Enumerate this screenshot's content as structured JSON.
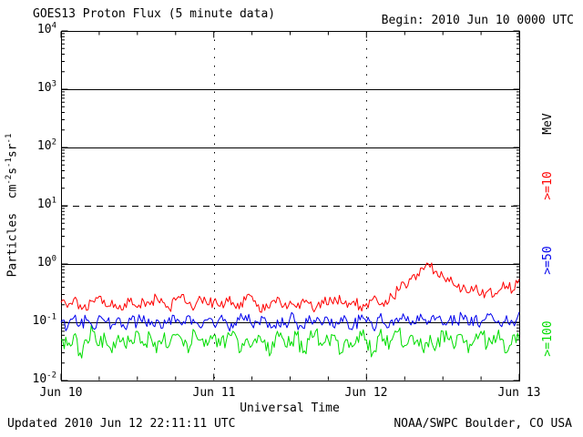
{
  "header": {
    "title": "GOES13 Proton Flux (5 minute data)",
    "begin_label": "Begin: 2010 Jun 10 0000 UTC"
  },
  "footer": {
    "updated": "Updated 2010 Jun 12 22:11:11 UTC",
    "source": "NOAA/SWPC Boulder, CO USA"
  },
  "chart_data": {
    "type": "line",
    "title": "GOES13 Proton Flux (5 minute data)",
    "xlabel": "Universal Time",
    "ylabel": "Particles cm^-2 s^-1 sr^-1",
    "ylabel_parts": {
      "t1": "Particles  cm",
      "s1": "-2",
      "t2": "s",
      "s2": "-1",
      "t3": "sr",
      "s3": "-1"
    },
    "unit_label": "MeV",
    "x_ticklabels": [
      "Jun 10",
      "Jun 11",
      "Jun 12",
      "Jun 13"
    ],
    "y_tick_exponents": [
      "4",
      "3",
      "2",
      "1",
      "0",
      "-1",
      "-2"
    ],
    "x_range_days": [
      0,
      3
    ],
    "y_range_log10": [
      -2,
      4
    ],
    "yscale": "log",
    "cadence_hours": 1,
    "grid": {
      "hlines": [
        {
          "value": 1000,
          "style": "solid"
        },
        {
          "value": 100,
          "style": "solid"
        },
        {
          "value": 10,
          "style": "dashed"
        },
        {
          "value": 1,
          "style": "solid"
        },
        {
          "value": 0.1,
          "style": "solid"
        }
      ],
      "vlines_days": [
        1,
        2
      ]
    },
    "series": [
      {
        "name": "Protons >=10 MeV",
        "label": ">=10",
        "color": "#ff0000",
        "jitter": 0.1,
        "values": [
          0.22,
          0.18,
          0.25,
          0.2,
          0.16,
          0.23,
          0.28,
          0.19,
          0.24,
          0.17,
          0.21,
          0.26,
          0.18,
          0.23,
          0.2,
          0.27,
          0.22,
          0.17,
          0.24,
          0.3,
          0.21,
          0.18,
          0.25,
          0.2,
          0.23,
          0.19,
          0.26,
          0.22,
          0.17,
          0.24,
          0.28,
          0.2,
          0.16,
          0.22,
          0.27,
          0.19,
          0.23,
          0.18,
          0.25,
          0.21,
          0.17,
          0.24,
          0.2,
          0.27,
          0.22,
          0.18,
          0.23,
          0.19,
          0.21,
          0.25,
          0.2,
          0.24,
          0.28,
          0.35,
          0.45,
          0.55,
          0.68,
          0.8,
          0.88,
          0.75,
          0.62,
          0.5,
          0.42,
          0.36,
          0.32,
          0.38,
          0.3,
          0.34,
          0.28,
          0.36,
          0.42,
          0.35,
          0.55
        ]
      },
      {
        "name": "Protons >=50 MeV",
        "label": ">=50",
        "color": "#0000ee",
        "jitter": 0.11,
        "values": [
          0.1,
          0.08,
          0.12,
          0.09,
          0.11,
          0.08,
          0.13,
          0.1,
          0.09,
          0.12,
          0.08,
          0.11,
          0.1,
          0.13,
          0.09,
          0.11,
          0.08,
          0.12,
          0.1,
          0.09,
          0.13,
          0.1,
          0.08,
          0.11,
          0.09,
          0.12,
          0.1,
          0.08,
          0.11,
          0.13,
          0.09,
          0.1,
          0.12,
          0.08,
          0.11,
          0.09,
          0.12,
          0.1,
          0.08,
          0.13,
          0.1,
          0.09,
          0.11,
          0.08,
          0.12,
          0.1,
          0.09,
          0.11,
          0.1,
          0.08,
          0.12,
          0.09,
          0.11,
          0.1,
          0.12,
          0.09,
          0.13,
          0.11,
          0.1,
          0.12,
          0.09,
          0.11,
          0.1,
          0.13,
          0.09,
          0.12,
          0.1,
          0.14,
          0.11,
          0.09,
          0.13,
          0.1,
          0.15
        ]
      },
      {
        "name": "Protons >=100 MeV",
        "label": ">=100",
        "color": "#00dd00",
        "jitter": 0.15,
        "values": [
          0.05,
          0.04,
          0.06,
          0.03,
          0.05,
          0.07,
          0.04,
          0.05,
          0.03,
          0.06,
          0.04,
          0.05,
          0.07,
          0.04,
          0.06,
          0.03,
          0.05,
          0.04,
          0.06,
          0.05,
          0.03,
          0.07,
          0.05,
          0.04,
          0.06,
          0.04,
          0.05,
          0.07,
          0.03,
          0.05,
          0.04,
          0.06,
          0.05,
          0.03,
          0.07,
          0.05,
          0.04,
          0.06,
          0.03,
          0.05,
          0.07,
          0.04,
          0.05,
          0.06,
          0.03,
          0.05,
          0.04,
          0.07,
          0.05,
          0.03,
          0.06,
          0.04,
          0.05,
          0.07,
          0.04,
          0.06,
          0.05,
          0.03,
          0.06,
          0.04,
          0.07,
          0.05,
          0.04,
          0.06,
          0.03,
          0.05,
          0.07,
          0.04,
          0.06,
          0.05,
          0.03,
          0.06,
          0.05
        ]
      }
    ]
  }
}
